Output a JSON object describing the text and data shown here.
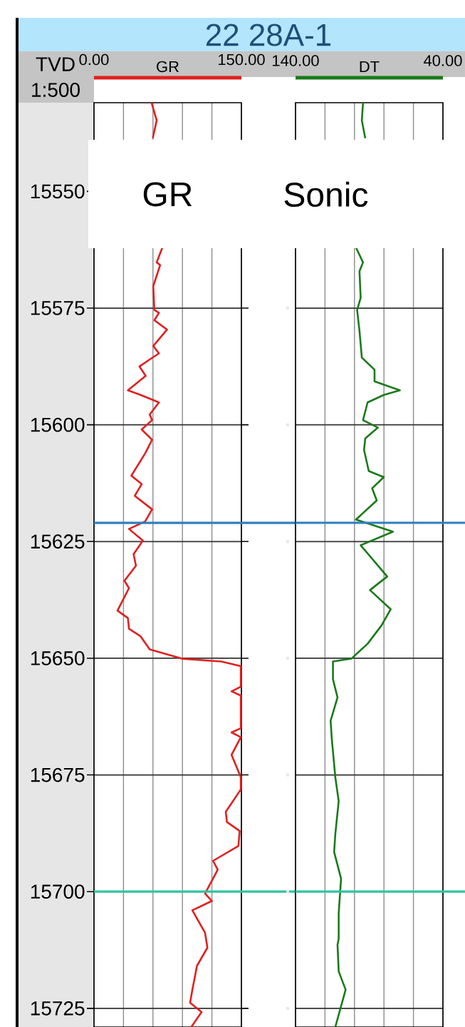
{
  "chart_data": [
    {
      "type": "line",
      "title": "22  28A-1",
      "xlabel": "GR",
      "ylabel": "TVD",
      "annotations": [
        "1:500",
        "GR"
      ],
      "xlim": [
        0,
        150
      ],
      "ylim": [
        15729,
        15531
      ],
      "xticks": [
        {
          "value": 0,
          "label": "0.00"
        },
        {
          "value": 30,
          "label": null
        },
        {
          "value": 60,
          "label": null
        },
        {
          "value": 90,
          "label": null
        },
        {
          "value": 120,
          "label": null
        },
        {
          "value": 150,
          "label": "150.00"
        }
      ],
      "yticks": [
        15550,
        15575,
        15600,
        15625,
        15650,
        15675,
        15700,
        15725
      ],
      "grid": true,
      "ref_lines": [
        {
          "axis": "y",
          "value": 15621,
          "color": "#2f7fbf"
        },
        {
          "axis": "y",
          "value": 15700,
          "color": "#2ec4a0"
        }
      ],
      "series": [
        {
          "color": "#e02020",
          "x": [
            58.6,
            63.8,
            59.8,
            null,
            69.6,
            63.8,
            67.3,
            60.3,
            61.4,
            66.1,
            61.4,
            74.3,
            60.3,
            66.1,
            56.7,
            46.2,
            52.6,
            34.5,
            47.4,
            66.1,
            56.7,
            59.1,
            48.5,
            59.1,
            52.1,
            38.0,
            48.5,
            41.5,
            59.1,
            52.1,
            35.6,
            49.7,
            40.3,
            42.7,
            31.0,
            35.6,
            23.9,
            34.5,
            35.6,
            47.4,
            56.7,
            89.6,
            129.4,
            149.4,
            149.4,
            140.0,
            149.4,
            149.4,
            140.0,
            149.4,
            140.0,
            149.4,
            149.4,
            134.1,
            135.3,
            148.2,
            147.0,
            121.2,
            125.9,
            113.0,
            120.0,
            100.1,
            113.0,
            115.4,
            104.8,
            100.1,
            97.8,
            109.5,
            99.0
          ],
          "values": [
            15531,
            15534.8,
            15538.6,
            null,
            15562.0,
            15565.2,
            15565.8,
            15570.3,
            15575.4,
            15576.0,
            15577.6,
            15579.6,
            15583.1,
            15584.7,
            15586.0,
            15587.5,
            15589.5,
            15592.6,
            15593.6,
            15595.2,
            15597.8,
            15599.0,
            15601.0,
            15603.2,
            15606.1,
            15610.9,
            15612.7,
            15615.2,
            15618.1,
            15620.7,
            15622.3,
            15624.8,
            15627.7,
            15630.2,
            15633.4,
            15635.0,
            15639.8,
            15641.4,
            15643.7,
            15645.3,
            15648.1,
            15650.1,
            15650.7,
            15651.7,
            15656.1,
            15657.1,
            15658.0,
            15665.0,
            15665.9,
            15666.9,
            15670.7,
            15675.5,
            15678.1,
            15682.9,
            15685.1,
            15687.0,
            15690.2,
            15693.4,
            15695.3,
            15700.4,
            15702.0,
            15704.0,
            15708.8,
            15712.0,
            15715.9,
            15721.0,
            15723.8,
            15725.8,
            15729
          ]
        }
      ]
    },
    {
      "type": "line",
      "xlabel": "DT",
      "annotations": [
        "Sonic"
      ],
      "xlim": [
        140,
        40
      ],
      "ylim": [
        15729,
        15531
      ],
      "xticks": [
        {
          "value": 140,
          "label": "140.00"
        },
        {
          "value": 120,
          "label": null
        },
        {
          "value": 100,
          "label": null
        },
        {
          "value": 80,
          "label": null
        },
        {
          "value": 60,
          "label": null
        },
        {
          "value": 40,
          "label": "40.00"
        }
      ],
      "yticks": [
        15550,
        15575,
        15600,
        15625,
        15650,
        15675,
        15700,
        15725
      ],
      "tick_labels": "x",
      "grid": true,
      "ref_lines": [
        {
          "axis": "y",
          "value": 15621,
          "color": "#2f7fbf"
        },
        {
          "axis": "y",
          "value": 15700,
          "color": "#2ec4a0"
        }
      ],
      "series": [
        {
          "color": "#1a7a1a",
          "x": [
            94.2,
            95.0,
            92.7,
            null,
            99.0,
            94.2,
            96.6,
            95.8,
            98.2,
            96.6,
            95.0,
            86.4,
            86.4,
            69.2,
            80.1,
            91.1,
            94.2,
            84.1,
            92.7,
            93.5,
            90.3,
            80.1,
            88.0,
            84.9,
            99.0,
            73.9,
            95.8,
            77.8,
            89.5,
            75.4,
            81.7,
            91.1,
            102.1,
            114.6,
            114.6,
            111.5,
            116.2,
            115.4,
            113.0,
            110.7,
            113.0,
            113.8,
            109.1,
            110.7,
            110.7,
            111.5,
            110.7,
            106.0,
            113.0
          ],
          "values": [
            15531,
            15534.8,
            15538.6,
            null,
            15562.0,
            15565.2,
            15567.1,
            15572.8,
            15575.4,
            15579.9,
            15585.6,
            15588.2,
            15590.7,
            15592.6,
            15593.6,
            15595.2,
            15599.0,
            15600.6,
            15602.9,
            15605.4,
            15609.9,
            15611.2,
            15613.6,
            15616.2,
            15620.3,
            15622.9,
            15625.8,
            15632.5,
            15635.4,
            15639.5,
            15643.0,
            15646.9,
            15650.1,
            15650.7,
            15654.5,
            15658.4,
            15663.4,
            15667.2,
            15675.5,
            15680.6,
            15687.7,
            15691.5,
            15697.2,
            15704.6,
            15710.1,
            15711.4,
            15717.1,
            15721.0,
            15729
          ]
        }
      ]
    }
  ]
}
